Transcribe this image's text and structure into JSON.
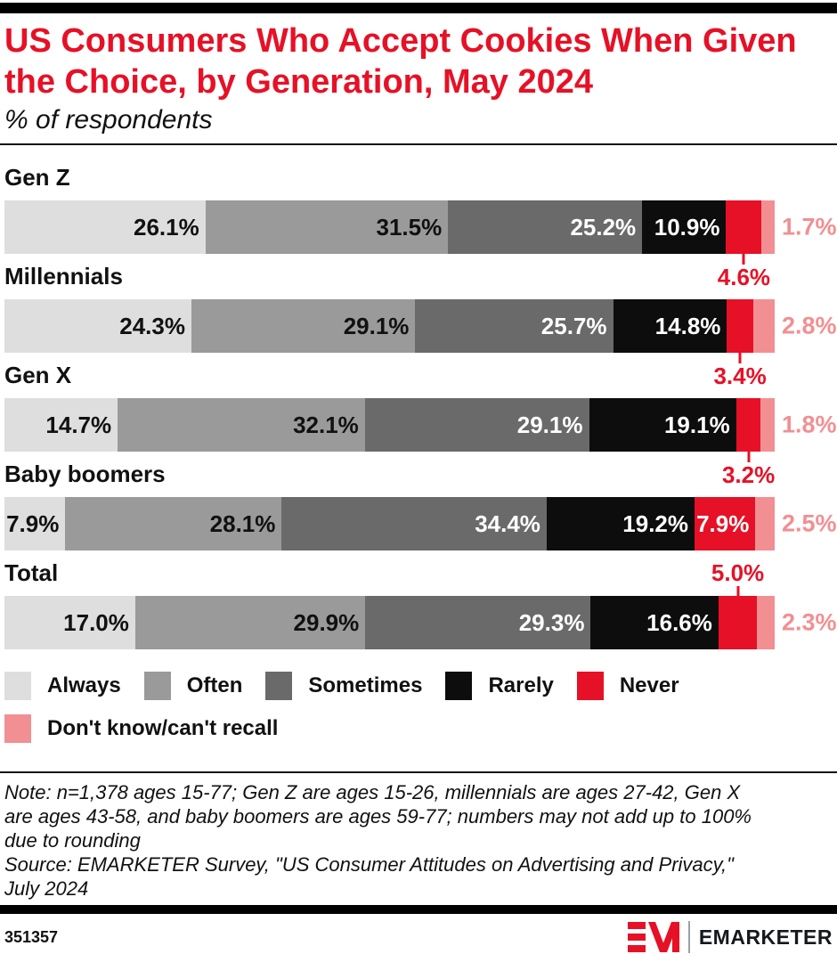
{
  "header": {
    "title": "US Consumers Who Accept Cookies When Given\nthe Choice, by Generation, May 2024",
    "subtitle": "% of respondents"
  },
  "chart_data": {
    "type": "bar",
    "subtype": "horizontal_stacked",
    "title": "US Consumers Who Accept Cookies When Given the Choice, by Generation, May 2024",
    "subtitle": "% of respondents",
    "unit": "percent",
    "xlim": [
      0,
      100
    ],
    "categories": [
      "Gen Z",
      "Millennials",
      "Gen X",
      "Baby boomers",
      "Total"
    ],
    "series": [
      {
        "name": "Always",
        "color": "#dedede",
        "label_color": "#111111",
        "values": [
          26.1,
          24.3,
          14.7,
          7.9,
          17.0
        ]
      },
      {
        "name": "Often",
        "color": "#9a9a9a",
        "label_color": "#111111",
        "values": [
          31.5,
          29.1,
          32.1,
          28.1,
          29.9
        ]
      },
      {
        "name": "Sometimes",
        "color": "#6a6a6a",
        "label_color": "#ffffff",
        "values": [
          25.2,
          25.7,
          29.1,
          34.4,
          29.3
        ]
      },
      {
        "name": "Rarely",
        "color": "#0d0d0d",
        "label_color": "#ffffff",
        "values": [
          10.9,
          14.8,
          19.1,
          19.2,
          16.6
        ]
      },
      {
        "name": "Never",
        "color": "#e61126",
        "label_color": "#ffffff",
        "values": [
          4.6,
          3.4,
          3.2,
          7.9,
          5.0
        ]
      },
      {
        "name": "Don't know/can't recall",
        "color": "#f28f92",
        "label_color": "#f28f92",
        "values": [
          1.7,
          2.8,
          1.8,
          2.5,
          2.3
        ]
      }
    ],
    "value_label_suffix": "%",
    "never_callout_color": "#e61126",
    "never_callout_positions": {
      "Gen Z": "below",
      "Millennials": "below",
      "Gen X": "below",
      "Baby boomers": "inside",
      "Total": "above"
    },
    "legend_rows": [
      [
        "Always",
        "Often",
        "Sometimes",
        "Rarely",
        "Never"
      ],
      [
        "Don't know/can't recall"
      ]
    ],
    "legend_position": "bottom"
  },
  "note": {
    "text": "Note: n=1,378 ages 15-77; Gen Z are ages 15-26, millennials are ages 27-42, Gen X\nare ages 43-58, and baby boomers are ages 59-77; numbers may not add up to 100%\ndue to rounding\nSource: EMARKETER Survey, \"US Consumer Attitudes on Advertising and Privacy,\"\nJuly 2024"
  },
  "footer": {
    "chart_id": "351357",
    "brand": "EMARKETER"
  }
}
